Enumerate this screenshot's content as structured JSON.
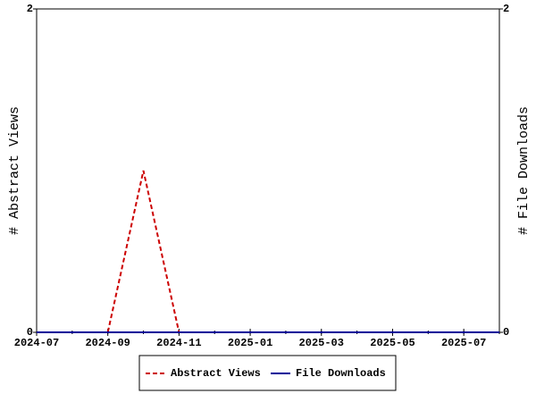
{
  "chart_data": {
    "type": "line",
    "x": [
      "2024-07",
      "2024-08",
      "2024-09",
      "2024-10",
      "2024-11",
      "2024-12",
      "2025-01",
      "2025-02",
      "2025-03",
      "2025-04",
      "2025-05",
      "2025-06",
      "2025-07",
      "2025-08"
    ],
    "series": [
      {
        "name": "Abstract Views",
        "color": "#cc0000",
        "dash": true,
        "values": [
          0,
          0,
          0,
          1,
          0,
          0,
          0,
          0,
          0,
          0,
          0,
          0,
          0,
          0
        ]
      },
      {
        "name": "File Downloads",
        "color": "#000099",
        "dash": false,
        "axis": "y2",
        "values": [
          0,
          0,
          0,
          0,
          0,
          0,
          0,
          0,
          0,
          0,
          0,
          0,
          0,
          0
        ]
      }
    ],
    "xlim": [
      "2024-07",
      "2025-08"
    ],
    "xticks": [
      "2024-07",
      "2024-09",
      "2024-11",
      "2025-01",
      "2025-03",
      "2025-05",
      "2025-07"
    ],
    "ylabel": "# Abstract Views",
    "ylim": [
      0,
      2
    ],
    "yticks": [
      0,
      2
    ],
    "y2label": "# File Downloads",
    "y2lim": [
      0,
      2
    ],
    "y2ticks": [
      0,
      2
    ],
    "legend": "bottom"
  }
}
